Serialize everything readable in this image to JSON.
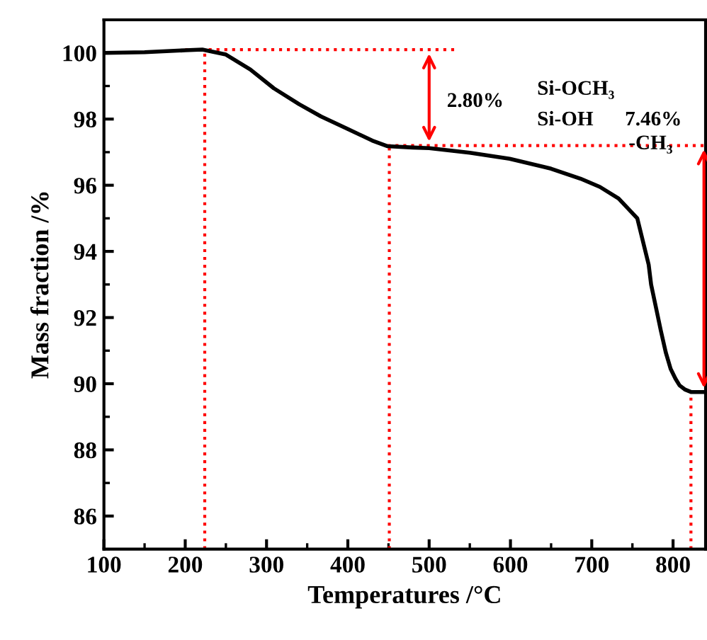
{
  "chart_data": {
    "type": "line",
    "xlabel": "Temperatures /°C",
    "ylabel": "Mass fraction /%",
    "series": [
      {
        "color": "#000000",
        "x": [
          100,
          150,
          200,
          221,
          250,
          280,
          309,
          340,
          367,
          400,
          430,
          449,
          480,
          500,
          550,
          599,
          650,
          686,
          710,
          733,
          756,
          770,
          773,
          779,
          785,
          791,
          797,
          803,
          808,
          815,
          822,
          830,
          840
        ],
        "values": [
          100.0,
          100.02,
          100.08,
          100.1,
          99.95,
          99.5,
          98.93,
          98.45,
          98.08,
          97.7,
          97.35,
          97.18,
          97.14,
          97.12,
          96.98,
          96.8,
          96.5,
          96.2,
          95.95,
          95.6,
          95.0,
          93.6,
          93.0,
          92.3,
          91.6,
          90.95,
          90.45,
          90.15,
          89.95,
          89.82,
          89.75,
          89.75,
          89.75
        ]
      }
    ],
    "xlim": [
      100,
      840
    ],
    "ylim": [
      85,
      101
    ],
    "xticks": [
      100,
      200,
      300,
      400,
      500,
      600,
      700,
      800
    ],
    "yticks": [
      86,
      88,
      90,
      92,
      94,
      96,
      98,
      100
    ],
    "ref_lines": [
      {
        "axis": "x",
        "value": 224,
        "color": "#ff0000",
        "line_style": "dotted"
      },
      {
        "axis": "x",
        "value": 451,
        "color": "#ff0000",
        "line_style": "dotted"
      },
      {
        "axis": "x",
        "value": 822,
        "color": "#ff0000",
        "line_style": "dotted"
      },
      {
        "axis": "y",
        "value": 100.1,
        "color": "#ff0000",
        "line_style": "dotted"
      },
      {
        "axis": "y",
        "value": 97.2,
        "color": "#ff0000",
        "line_style": "dotted"
      }
    ],
    "annotations": [
      "2.80%",
      "Si-OCH₃",
      "Si-OH",
      "7.46%",
      "-CH₃"
    ],
    "grid": false,
    "legend": false
  }
}
